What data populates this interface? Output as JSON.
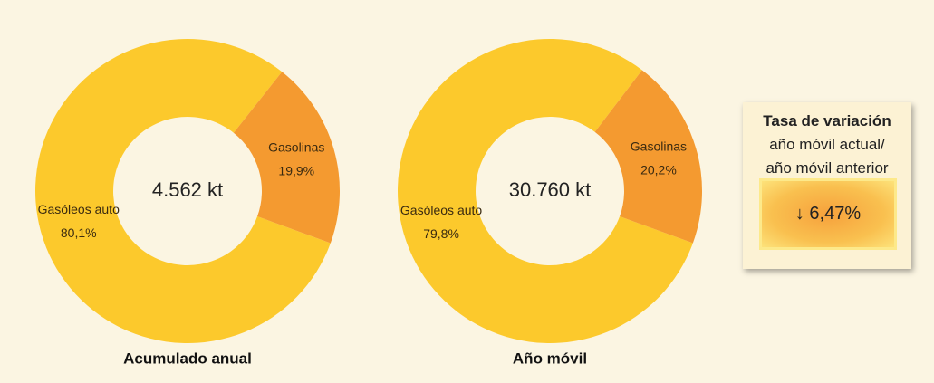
{
  "chart_data": [
    {
      "type": "donut",
      "title": "Acumulado anual",
      "center_label": "4.562 kt",
      "categories": [
        "Gasóleos auto",
        "Gasolinas"
      ],
      "values": [
        80.1,
        19.9
      ],
      "value_labels": [
        "80,1%",
        "19,9%"
      ],
      "colors": [
        "#fcc92c",
        "#f49a30"
      ]
    },
    {
      "type": "donut",
      "title": "Año móvil",
      "center_label": "30.760 kt",
      "categories": [
        "Gasóleos auto",
        "Gasolinas"
      ],
      "values": [
        79.8,
        20.2
      ],
      "value_labels": [
        "79,8%",
        "20,2%"
      ],
      "colors": [
        "#fcc92c",
        "#f49a30"
      ]
    }
  ],
  "variation_box": {
    "title": "Tasa de variación",
    "lines": [
      "año móvil actual/",
      "año móvil anterior"
    ],
    "value": "↓ 6,47%"
  }
}
